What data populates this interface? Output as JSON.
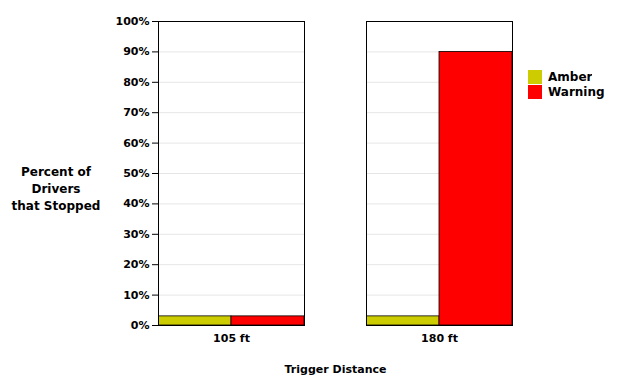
{
  "chart_data": {
    "type": "bar",
    "categories": [
      "105 ft",
      "180 ft"
    ],
    "series": [
      {
        "name": "Amber",
        "color": "#cccc00",
        "values": [
          3,
          3
        ]
      },
      {
        "name": "Warning",
        "color": "#ff0000",
        "values": [
          3,
          90
        ]
      }
    ],
    "xlabel": "Trigger Distance",
    "ylabel": [
      "Percent of Drivers",
      "that Stopped"
    ],
    "ylim": [
      0,
      100
    ],
    "yticks": [
      {
        "value": 0,
        "label": "0%"
      },
      {
        "value": 10,
        "label": "10%"
      },
      {
        "value": 20,
        "label": "20%"
      },
      {
        "value": 30,
        "label": "30%"
      },
      {
        "value": 40,
        "label": "40%"
      },
      {
        "value": 50,
        "label": "50%"
      },
      {
        "value": 60,
        "label": "60%"
      },
      {
        "value": 70,
        "label": "70%"
      },
      {
        "value": 80,
        "label": "80%"
      },
      {
        "value": 90,
        "label": "90%"
      },
      {
        "value": 100,
        "label": "100%"
      }
    ],
    "grid": true,
    "legend": "right"
  }
}
